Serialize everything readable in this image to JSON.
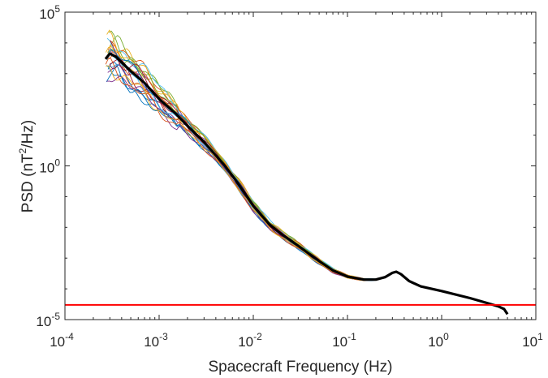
{
  "chart_data": {
    "type": "line",
    "xlabel": "Spacecraft Frequency (Hz)",
    "ylabel_parts": {
      "pre": "PSD (nT",
      "sup": "2",
      "post": "/Hz)"
    },
    "xscale": "log",
    "yscale": "log",
    "xlim": [
      0.0001,
      10
    ],
    "ylim": [
      1e-05,
      100000
    ],
    "grid": false,
    "x_ticks": [
      {
        "base": "10",
        "exp": "-4",
        "value": 0.0001
      },
      {
        "base": "10",
        "exp": "-3",
        "value": 0.001
      },
      {
        "base": "10",
        "exp": "-2",
        "value": 0.01
      },
      {
        "base": "10",
        "exp": "-1",
        "value": 0.1
      },
      {
        "base": "10",
        "exp": "0",
        "value": 1
      },
      {
        "base": "10",
        "exp": "1",
        "value": 10
      }
    ],
    "y_ticks": [
      {
        "base": "10",
        "exp": "5",
        "value": 100000
      },
      {
        "base": "10",
        "exp": "0",
        "value": 1
      },
      {
        "base": "10",
        "exp": "-5",
        "value": 1e-05
      }
    ],
    "mean_series": {
      "color": "#000000",
      "points": [
        [
          0.00027,
          3000
        ],
        [
          0.0003,
          4500
        ],
        [
          0.00035,
          3500
        ],
        [
          0.0005,
          1200
        ],
        [
          0.0007,
          500
        ],
        [
          0.001,
          150
        ],
        [
          0.0015,
          50
        ],
        [
          0.002,
          20
        ],
        [
          0.003,
          6
        ],
        [
          0.005,
          1
        ],
        [
          0.007,
          0.25
        ],
        [
          0.01,
          0.05
        ],
        [
          0.015,
          0.012
        ],
        [
          0.02,
          0.006
        ],
        [
          0.03,
          0.0025
        ],
        [
          0.05,
          0.0008
        ],
        [
          0.07,
          0.0004
        ],
        [
          0.1,
          0.00025
        ],
        [
          0.15,
          0.0002
        ],
        [
          0.2,
          0.0002
        ],
        [
          0.25,
          0.00024
        ],
        [
          0.3,
          0.00033
        ],
        [
          0.33,
          0.00036
        ],
        [
          0.37,
          0.0003
        ],
        [
          0.45,
          0.00018
        ],
        [
          0.6,
          0.00012
        ],
        [
          1,
          8.5e-05
        ],
        [
          2,
          5e-05
        ],
        [
          3,
          3.5e-05
        ],
        [
          4,
          2.7e-05
        ],
        [
          4.6,
          2.2e-05
        ],
        [
          5,
          1.5e-05
        ]
      ]
    },
    "event_series": {
      "count": 24,
      "colors": [
        "#0072bd",
        "#d95319",
        "#edb120",
        "#7e2f8e",
        "#77ac30",
        "#4dbeee",
        "#a2142f"
      ],
      "x_start": 0.00027,
      "x_end": 0.3
    },
    "threshold": {
      "y": 3e-05,
      "color": "#ff0000"
    }
  }
}
